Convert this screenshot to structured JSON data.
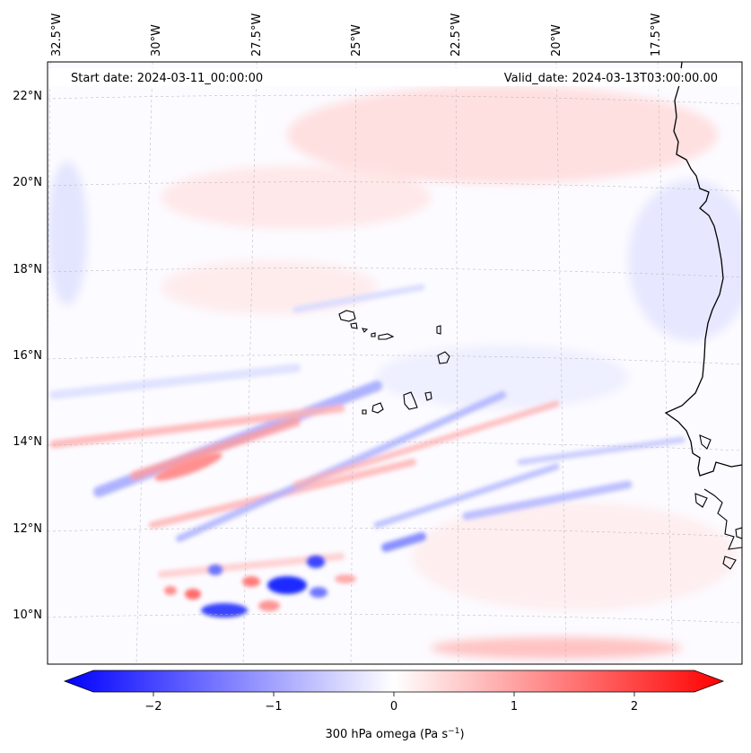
{
  "header": {
    "start_date": "Start date: 2024-03-11_00:00:00",
    "valid_date": "Valid_date: 2024-03-13T03:00:00.00"
  },
  "lon_labels": [
    "32.5°W",
    "30°W",
    "27.5°W",
    "25°W",
    "22.5°W",
    "20°W",
    "17.5°W"
  ],
  "lat_labels": [
    "22°N",
    "20°N",
    "18°N",
    "16°N",
    "14°N",
    "12°N",
    "10°N"
  ],
  "colorbar": {
    "ticks": [
      "−2",
      "−1",
      "0",
      "1",
      "2"
    ],
    "tick_values": [
      -2,
      -1,
      0,
      1,
      2
    ],
    "range": [
      -2.5,
      2.5
    ],
    "label_text": "300 hPa omega (Pa s",
    "label_sup": "−1",
    "label_close": ")",
    "colors": {
      "neg": "#0000ff",
      "mid": "#ffffff",
      "pos": "#ff0000"
    }
  },
  "map": {
    "coast_color": "#000000",
    "grid_color": "#b0b0b0"
  }
}
